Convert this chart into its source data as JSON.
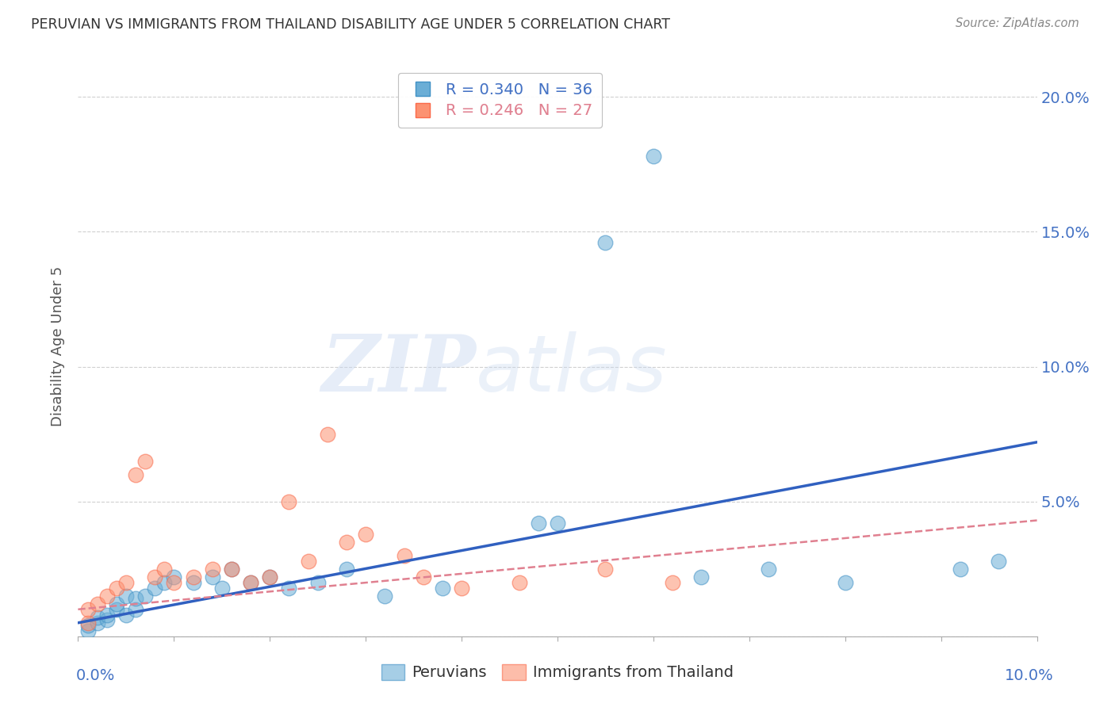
{
  "title": "PERUVIAN VS IMMIGRANTS FROM THAILAND DISABILITY AGE UNDER 5 CORRELATION CHART",
  "source": "Source: ZipAtlas.com",
  "ylabel": "Disability Age Under 5",
  "y_ticks": [
    0.0,
    0.05,
    0.1,
    0.15,
    0.2
  ],
  "y_tick_labels": [
    "",
    "5.0%",
    "10.0%",
    "15.0%",
    "20.0%"
  ],
  "xlim": [
    0.0,
    0.1
  ],
  "ylim": [
    0.0,
    0.215
  ],
  "peruvian_color": "#6baed6",
  "peruvian_edge_color": "#4292c6",
  "thailand_color": "#fc9272",
  "thailand_edge_color": "#fb6a4a",
  "peruvian_R": 0.34,
  "peruvian_N": 36,
  "thailand_R": 0.246,
  "thailand_N": 27,
  "peruvian_scatter_x": [
    0.001,
    0.001,
    0.002,
    0.002,
    0.003,
    0.003,
    0.004,
    0.004,
    0.005,
    0.005,
    0.006,
    0.006,
    0.007,
    0.008,
    0.009,
    0.01,
    0.012,
    0.014,
    0.015,
    0.016,
    0.018,
    0.02,
    0.022,
    0.025,
    0.028,
    0.032,
    0.038,
    0.048,
    0.05,
    0.055,
    0.06,
    0.065,
    0.072,
    0.08,
    0.092,
    0.096
  ],
  "peruvian_scatter_y": [
    0.002,
    0.004,
    0.005,
    0.007,
    0.006,
    0.008,
    0.01,
    0.012,
    0.008,
    0.015,
    0.01,
    0.014,
    0.015,
    0.018,
    0.02,
    0.022,
    0.02,
    0.022,
    0.018,
    0.025,
    0.02,
    0.022,
    0.018,
    0.02,
    0.025,
    0.015,
    0.018,
    0.042,
    0.042,
    0.146,
    0.178,
    0.022,
    0.025,
    0.02,
    0.025,
    0.028
  ],
  "thailand_scatter_x": [
    0.001,
    0.001,
    0.002,
    0.003,
    0.004,
    0.005,
    0.006,
    0.007,
    0.008,
    0.009,
    0.01,
    0.012,
    0.014,
    0.016,
    0.018,
    0.02,
    0.022,
    0.024,
    0.026,
    0.028,
    0.03,
    0.034,
    0.036,
    0.04,
    0.046,
    0.055,
    0.062
  ],
  "thailand_scatter_y": [
    0.005,
    0.01,
    0.012,
    0.015,
    0.018,
    0.02,
    0.06,
    0.065,
    0.022,
    0.025,
    0.02,
    0.022,
    0.025,
    0.025,
    0.02,
    0.022,
    0.05,
    0.028,
    0.075,
    0.035,
    0.038,
    0.03,
    0.022,
    0.018,
    0.02,
    0.025,
    0.02
  ],
  "peruvian_line_x": [
    0.0,
    0.1
  ],
  "peruvian_line_y": [
    0.005,
    0.072
  ],
  "thailand_line_x": [
    0.0,
    0.1
  ],
  "thailand_line_y": [
    0.01,
    0.043
  ],
  "watermark_zip": "ZIP",
  "watermark_atlas": "atlas",
  "background_color": "#ffffff",
  "grid_color": "#d0d0d0",
  "title_color": "#333333",
  "axis_label_color": "#4472c4",
  "right_ytick_color": "#4472c4",
  "legend_text_color": "#4472c4",
  "peruvian_line_color": "#3060c0",
  "thailand_line_color": "#e08090"
}
